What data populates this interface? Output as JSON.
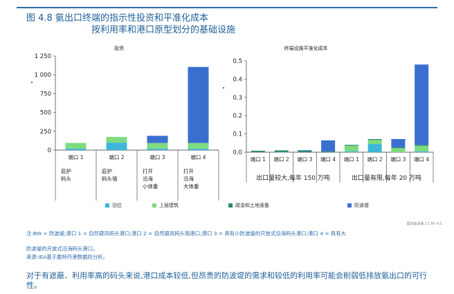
{
  "figure": {
    "title_line1": "图 4.8 氨出口终端的指示性投资和平准化成本",
    "title_line2": "按利用率和港口原型划分的基础设施"
  },
  "source_tag": "国际能源署.CC BY 4.0.",
  "notes": {
    "note1": "注:BW = 防波堤;港口 1 = 自然避风码头港口;港口 2 = 自然避风码头墙港口;港口 3 = 具有小防波堤的开放式沿海码头港口;港口 4 = 具有大",
    "note2": "防波堤的开放式沿海码头港口。",
    "note3": "来源:IEA基于鹿特丹港数据的分析。"
  },
  "conclusion": "对于有遮蔽、利用率高的码头来说,港口成本较低,但昂贵的防波堤的需求和较低的利用率可能会削弱低排放氨出口的可行性。",
  "legend": [
    {
      "label": "泊位",
      "color": "#3fb6d9"
    },
    {
      "label": "上层建筑",
      "color": "#7edb7e"
    },
    {
      "label": "疏浚和土地准备",
      "color": "#2e8b6e"
    },
    {
      "label": "防波堤",
      "color": "#3a6fd0"
    }
  ],
  "chart_data": [
    {
      "type": "bar",
      "stacked": true,
      "title": "投资",
      "categories": [
        "端口 1",
        "端口 2",
        "端口 3",
        "端口 4"
      ],
      "category_sublabels": [
        [
          "庇护",
          "码头"
        ],
        [
          "庇护",
          "码头墙"
        ],
        [
          "打开",
          "沿海",
          "小体重"
        ],
        [
          "打开",
          "沿海",
          "大体重"
        ]
      ],
      "yticks": [
        "0",
        "250",
        "500",
        "750",
        "1 000",
        "1 250"
      ],
      "ylim": [
        0,
        1250
      ],
      "grid": false,
      "series": [
        {
          "name": "泊位",
          "color": "#3fb6d9",
          "values": [
            20,
            100,
            20,
            20
          ]
        },
        {
          "name": "上层建筑",
          "color": "#7edb7e",
          "values": [
            75,
            75,
            75,
            75
          ]
        },
        {
          "name": "疏浚和土地准备",
          "color": "#2e8b6e",
          "values": [
            0,
            0,
            0,
            0
          ]
        },
        {
          "name": "防波堤",
          "color": "#3a6fd0",
          "values": [
            0,
            0,
            95,
            1010
          ]
        }
      ]
    },
    {
      "type": "bar",
      "stacked": true,
      "title": "终端设施平准化成本",
      "categories": [
        "端口 1",
        "端口 2",
        "端口 3",
        "端口 4",
        "端口 1",
        "端口 2",
        "端口 3",
        "端口 4"
      ],
      "groups": [
        "出口量较大,每年 150 万吨",
        "出口量有限,每年 20 万吨"
      ],
      "yticks": [
        "0.0",
        "0.1",
        "0.2",
        "0.3",
        "0.4",
        "0.5"
      ],
      "ylim": [
        0,
        0.5
      ],
      "grid": false,
      "series": [
        {
          "name": "泊位",
          "color": "#3fb6d9",
          "values": [
            0,
            0.001,
            0,
            0,
            0.005,
            0.045,
            0,
            0.005
          ]
        },
        {
          "name": "上层建筑",
          "color": "#7edb7e",
          "values": [
            0,
            0,
            0,
            0,
            0.03,
            0.022,
            0.022,
            0.03
          ]
        },
        {
          "name": "疏浚和土地准备",
          "color": "#2e8b6e",
          "values": [
            0.008,
            0.009,
            0.009,
            0.005,
            0.005,
            0.005,
            0.005,
            0.005
          ]
        },
        {
          "name": "防波堤",
          "color": "#3a6fd0",
          "values": [
            0,
            0,
            0.002,
            0.06,
            0,
            0,
            0.045,
            0.44
          ]
        }
      ]
    }
  ]
}
